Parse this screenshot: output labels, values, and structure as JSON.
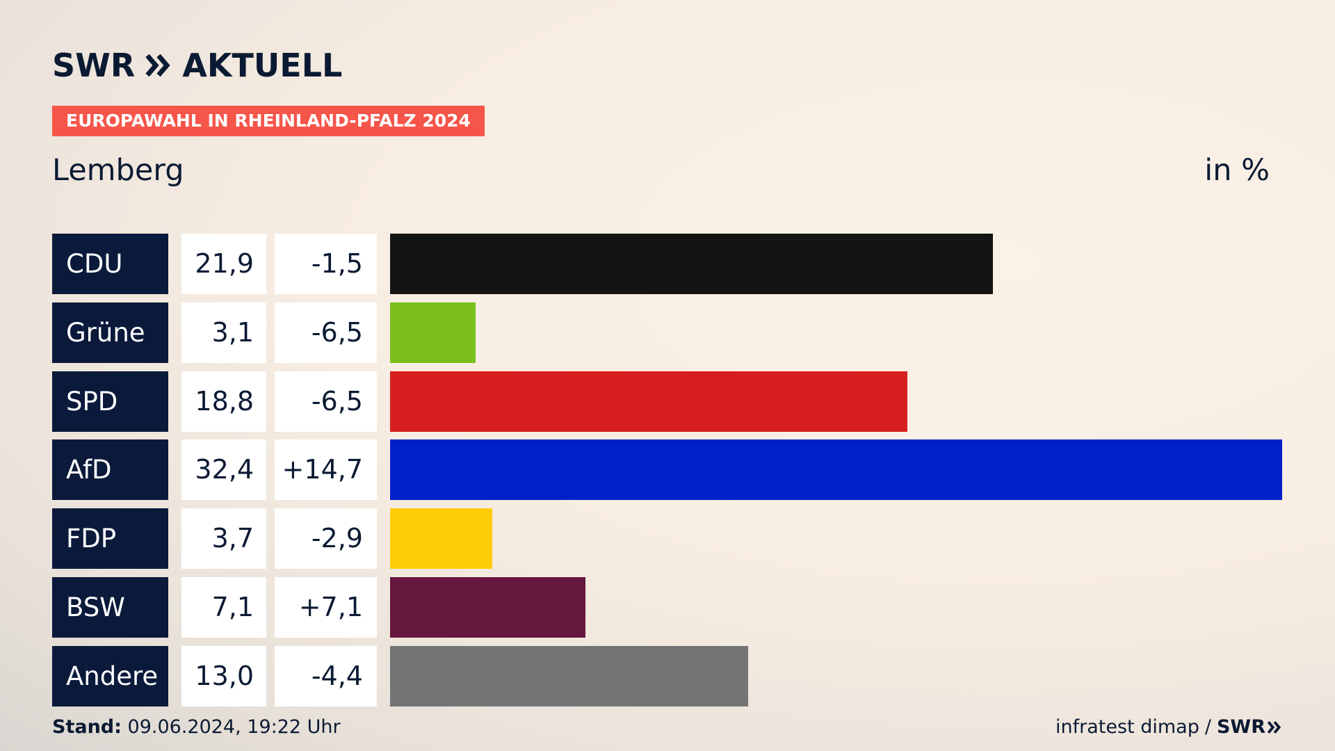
{
  "header": {
    "logo_text": "SWR",
    "logo_suffix": "AKTUELL",
    "tag": "EUROPAWAHL IN RHEINLAND-PFALZ 2024",
    "place": "Lemberg",
    "unit": "in %"
  },
  "chart_data": {
    "type": "bar",
    "orientation": "horizontal",
    "categories": [
      "CDU",
      "Grüne",
      "SPD",
      "AfD",
      "FDP",
      "BSW",
      "Andere"
    ],
    "values": [
      21.9,
      3.1,
      18.8,
      32.4,
      3.7,
      7.1,
      13.0
    ],
    "value_labels": [
      "21,9",
      "3,1",
      "18,8",
      "32,4",
      "3,7",
      "7,1",
      "13,0"
    ],
    "diff_labels": [
      "-1,5",
      "-6,5",
      "-6,5",
      "+14,7",
      "-2,9",
      "+7,1",
      "-4,4"
    ],
    "diffs": [
      -1.5,
      -6.5,
      -6.5,
      14.7,
      -2.9,
      7.1,
      -4.4
    ],
    "colors": [
      "#141414",
      "#7abf1c",
      "#d71f1f",
      "#0020c9",
      "#ffcc08",
      "#66173e",
      "#737475"
    ],
    "xlim": [
      0,
      32.4
    ]
  },
  "footer": {
    "stand_label": "Stand:",
    "stand_value": "09.06.2024, 19:22 Uhr",
    "source": "infratest dimap",
    "separator": "/",
    "source_logo": "SWR"
  },
  "icons": {
    "logo": "double-chevron-right-icon",
    "footer_logo": "double-chevron-right-icon"
  }
}
